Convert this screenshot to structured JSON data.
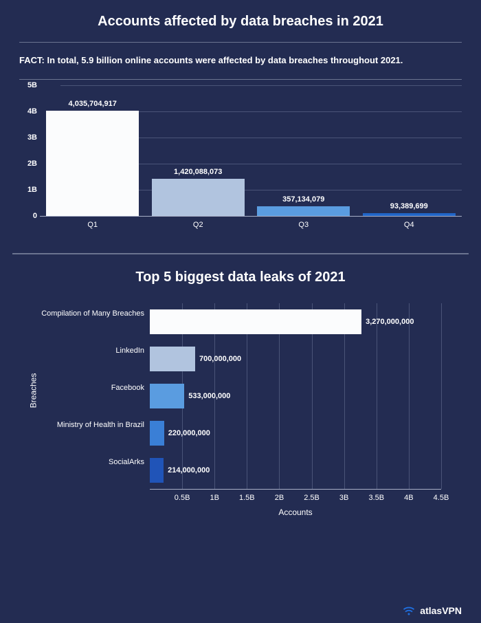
{
  "title": "Accounts affected by data breaches in 2021",
  "fact_prefix": "FACT: ",
  "fact_text": "In total, 5.9 billion online accounts were affected by data breaches throughout 2021.",
  "chart1": {
    "type": "bar",
    "ymax": 5000000000,
    "yticks": [
      {
        "v": 0,
        "label": "0"
      },
      {
        "v": 1000000000,
        "label": "1B"
      },
      {
        "v": 2000000000,
        "label": "2B"
      },
      {
        "v": 3000000000,
        "label": "3B"
      },
      {
        "v": 4000000000,
        "label": "4B"
      },
      {
        "v": 5000000000,
        "label": "5B"
      }
    ],
    "bars": [
      {
        "category": "Q1",
        "value": 4035704917,
        "label": "4,035,704,917",
        "color": "#fbfcfd"
      },
      {
        "category": "Q2",
        "value": 1420088073,
        "label": "1,420,088,073",
        "color": "#b1c4df"
      },
      {
        "category": "Q3",
        "value": 357134079,
        "label": "357,134,079",
        "color": "#5a9ce0"
      },
      {
        "category": "Q4",
        "value": 93389699,
        "label": "93,389,699",
        "color": "#2166c8"
      }
    ],
    "grid_color": "#4a5478",
    "axis_fontsize": 11
  },
  "title2": "Top 5 biggest data leaks of 2021",
  "chart2": {
    "type": "horizontal-bar",
    "xmax": 4500000000,
    "xticks": [
      {
        "v": 500000000,
        "label": "0.5B"
      },
      {
        "v": 1000000000,
        "label": "1B"
      },
      {
        "v": 1500000000,
        "label": "1.5B"
      },
      {
        "v": 2000000000,
        "label": "2B"
      },
      {
        "v": 2500000000,
        "label": "2.5B"
      },
      {
        "v": 3000000000,
        "label": "3B"
      },
      {
        "v": 3500000000,
        "label": "3.5B"
      },
      {
        "v": 4000000000,
        "label": "4B"
      },
      {
        "v": 4500000000,
        "label": "4.5B"
      }
    ],
    "xtitle": "Accounts",
    "ytitle": "Breaches",
    "bars": [
      {
        "category": "Compilation of Many Breaches",
        "value": 3270000000,
        "label": "3,270,000,000",
        "color": "#fbfcfd"
      },
      {
        "category": "LinkedIn",
        "value": 700000000,
        "label": "700,000,000",
        "color": "#b1c4df"
      },
      {
        "category": "Facebook",
        "value": 533000000,
        "label": "533,000,000",
        "color": "#5a9ce0"
      },
      {
        "category": "Ministry of Health in Brazil",
        "value": 220000000,
        "label": "220,000,000",
        "color": "#3a7fd6"
      },
      {
        "category": "SocialArks",
        "value": 214000000,
        "label": "214,000,000",
        "color": "#2054b8"
      }
    ],
    "grid_color": "#4a5478",
    "axis_fontsize": 11
  },
  "brand": "atlasVPN",
  "colors": {
    "background": "#232c52",
    "text": "#ffffff",
    "axis": "#a9b0c7"
  }
}
